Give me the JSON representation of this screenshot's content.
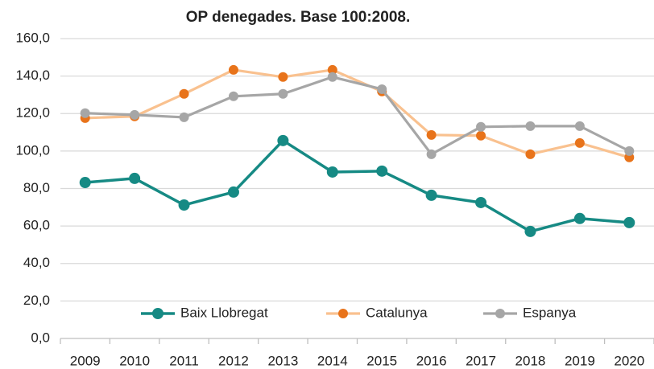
{
  "chart_data": {
    "type": "line",
    "title": "OP denegades. Base 100:2008.",
    "categories": [
      "2009",
      "2010",
      "2011",
      "2012",
      "2013",
      "2014",
      "2015",
      "2016",
      "2017",
      "2018",
      "2019",
      "2020"
    ],
    "series": [
      {
        "name": "Baix Llobregat",
        "color": "#168a84",
        "marker_color": "#168a84",
        "values": [
          83.2,
          85.4,
          71.2,
          78.1,
          105.6,
          88.8,
          89.3,
          76.4,
          72.5,
          57.1,
          64.0,
          61.8
        ]
      },
      {
        "name": "Catalunya",
        "color": "#f9c18f",
        "marker_color": "#e8731a",
        "values": [
          117.6,
          118.5,
          130.5,
          143.3,
          139.5,
          143.3,
          131.8,
          108.6,
          108.2,
          98.3,
          104.3,
          96.6
        ]
      },
      {
        "name": "Espanya",
        "color": "#a6a6a6",
        "marker_color": "#a6a6a6",
        "values": [
          120.2,
          119.3,
          118.0,
          129.2,
          130.5,
          139.5,
          133.0,
          98.3,
          112.9,
          113.3,
          113.3,
          100.0
        ]
      }
    ],
    "ylim": [
      0,
      160
    ],
    "yticks": [
      {
        "value": 0,
        "label": "0,0"
      },
      {
        "value": 20,
        "label": "20,0"
      },
      {
        "value": 40,
        "label": "40,0"
      },
      {
        "value": 60,
        "label": "60,0"
      },
      {
        "value": 80,
        "label": "80,0"
      },
      {
        "value": 100,
        "label": "100,0"
      },
      {
        "value": 120,
        "label": "120,0"
      },
      {
        "value": 140,
        "label": "140,0"
      },
      {
        "value": 160,
        "label": "160,0"
      }
    ],
    "grid": true,
    "legend": "bottom"
  }
}
